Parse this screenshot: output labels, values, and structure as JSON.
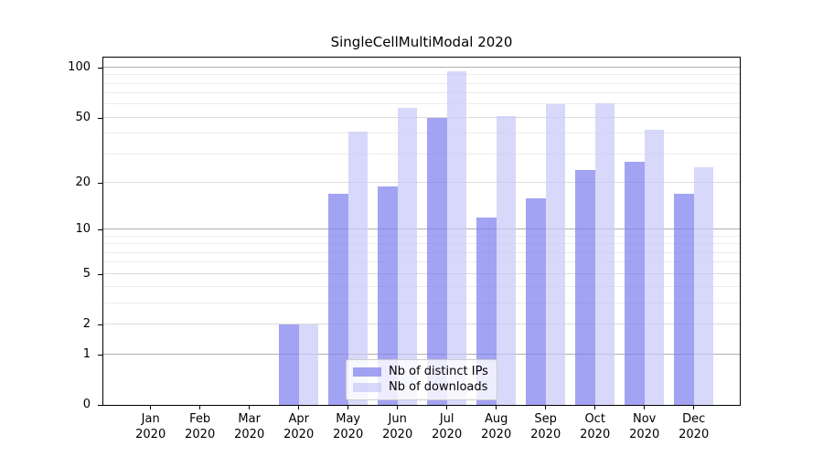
{
  "title": "SingleCellMultiModal 2020",
  "chart_data": {
    "type": "bar",
    "title": "SingleCellMultiModal 2020",
    "x": {
      "months": [
        "Jan",
        "Feb",
        "Mar",
        "Apr",
        "May",
        "Jun",
        "Jul",
        "Aug",
        "Sep",
        "Oct",
        "Nov",
        "Dec"
      ],
      "year": "2020"
    },
    "categories": [
      "Jan 2020",
      "Feb 2020",
      "Mar 2020",
      "Apr 2020",
      "May 2020",
      "Jun 2020",
      "Jul 2020",
      "Aug 2020",
      "Sep 2020",
      "Oct 2020",
      "Nov 2020",
      "Dec 2020"
    ],
    "series": [
      {
        "name": "Nb of distinct IPs",
        "color": "rgba(127,127,238,0.72)",
        "values": [
          0,
          0,
          0,
          2,
          17,
          19,
          50,
          12,
          16,
          24,
          27,
          17
        ]
      },
      {
        "name": "Nb of downloads",
        "color": "rgba(201,201,248,0.72)",
        "values": [
          0,
          0,
          0,
          2,
          41,
          57,
          95,
          51,
          60,
          61,
          42,
          25
        ]
      }
    ],
    "yscale": "log1p",
    "ylim": [
      0,
      115
    ],
    "yticks": [
      0,
      1,
      2,
      5,
      10,
      20,
      50,
      100
    ],
    "minor_yticks": [
      3,
      4,
      6,
      7,
      8,
      9,
      30,
      40,
      60,
      70,
      80,
      90
    ],
    "decade_gridlines": [
      1,
      10,
      100
    ],
    "grid": true,
    "legend_position": "lower center",
    "xlabel": "",
    "ylabel": ""
  },
  "legend": {
    "items": [
      {
        "label": "Nb of distinct IPs"
      },
      {
        "label": "Nb of downloads"
      }
    ]
  },
  "colors": {
    "grid_major": "#b0b0b0",
    "grid_mid": "#dcdcdc",
    "grid_minor": "#ececec",
    "spine": "#000000",
    "background": "#ffffff",
    "legend_border": "#cccccc",
    "text": "#000000"
  }
}
